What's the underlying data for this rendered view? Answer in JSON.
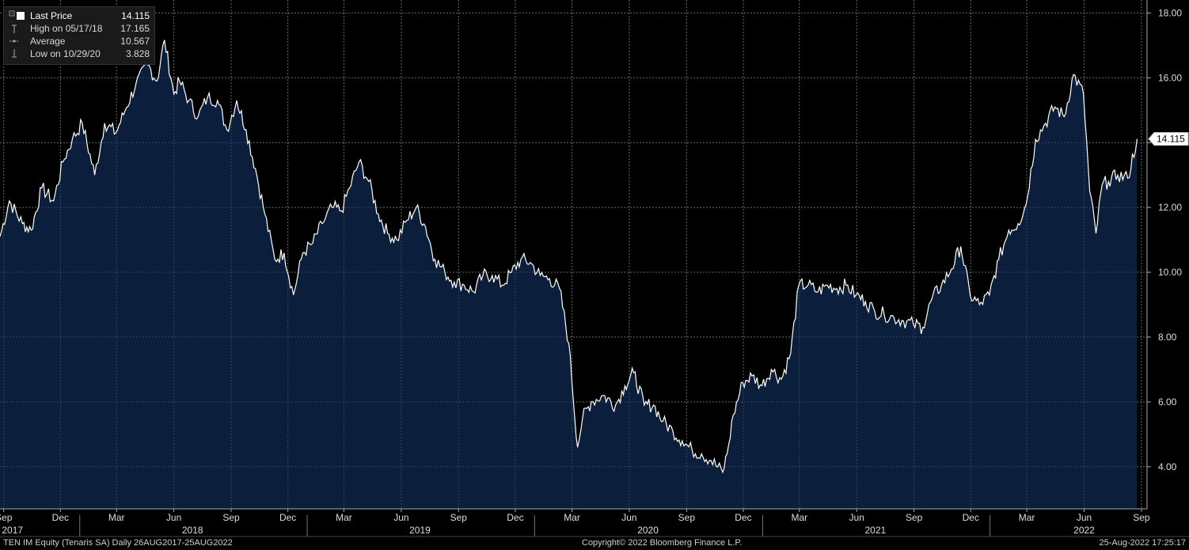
{
  "legend": {
    "last_label": "Last Price",
    "last_value": "14.115",
    "high_label": "High on 05/17/18",
    "high_value": "17.165",
    "avg_label": "Average",
    "avg_value": "10.567",
    "low_label": "Low on 10/29/20",
    "low_value": "3.828"
  },
  "footer": {
    "left": "TEN IM Equity (Tenaris SA)  Daily 26AUG2017-25AUG2022",
    "center": "Copyright© 2022 Bloomberg Finance L.P.",
    "right": "25-Aug-2022 17:25:17"
  },
  "colors": {
    "background": "#000000",
    "area_fill": "#0b1f3d",
    "line": "#ffffff",
    "grid": "#8a8a8a"
  },
  "chart_data": {
    "type": "area",
    "series": [
      {
        "name": "Last Price",
        "x": [
          "2017-08-26",
          "2017-09-10",
          "2017-10-01",
          "2017-10-15",
          "2017-11-01",
          "2017-11-20",
          "2017-12-05",
          "2017-12-20",
          "2018-01-05",
          "2018-01-25",
          "2018-02-10",
          "2018-02-28",
          "2018-03-15",
          "2018-04-01",
          "2018-04-20",
          "2018-05-05",
          "2018-05-17",
          "2018-06-01",
          "2018-06-10",
          "2018-06-25",
          "2018-07-10",
          "2018-07-25",
          "2018-08-10",
          "2018-08-25",
          "2018-09-10",
          "2018-09-25",
          "2018-10-10",
          "2018-10-25",
          "2018-11-10",
          "2018-11-25",
          "2018-12-10",
          "2018-12-25",
          "2019-01-10",
          "2019-01-25",
          "2019-02-10",
          "2019-02-25",
          "2019-03-10",
          "2019-03-25",
          "2019-04-10",
          "2019-04-25",
          "2019-05-10",
          "2019-05-25",
          "2019-06-10",
          "2019-06-25",
          "2019-07-10",
          "2019-07-25",
          "2019-08-10",
          "2019-08-25",
          "2019-09-10",
          "2019-09-25",
          "2019-10-10",
          "2019-10-25",
          "2019-11-10",
          "2019-11-25",
          "2019-12-10",
          "2019-12-25",
          "2020-01-10",
          "2020-01-25",
          "2020-02-10",
          "2020-02-25",
          "2020-03-10",
          "2020-03-18",
          "2020-04-01",
          "2020-04-20",
          "2020-05-10",
          "2020-05-25",
          "2020-06-08",
          "2020-06-25",
          "2020-07-10",
          "2020-07-25",
          "2020-08-10",
          "2020-08-25",
          "2020-09-10",
          "2020-09-25",
          "2020-10-10",
          "2020-10-29",
          "2020-11-05",
          "2020-11-15",
          "2020-11-30",
          "2020-12-15",
          "2020-12-31",
          "2021-01-15",
          "2021-01-31",
          "2021-02-15",
          "2021-02-28",
          "2021-03-15",
          "2021-03-31",
          "2021-04-15",
          "2021-04-30",
          "2021-05-15",
          "2021-05-31",
          "2021-06-15",
          "2021-06-30",
          "2021-07-15",
          "2021-07-31",
          "2021-08-15",
          "2021-08-31",
          "2021-09-15",
          "2021-09-30",
          "2021-10-15",
          "2021-10-31",
          "2021-11-15",
          "2021-11-30",
          "2021-12-15",
          "2021-12-31",
          "2022-01-15",
          "2022-01-31",
          "2022-02-15",
          "2022-02-28",
          "2022-03-15",
          "2022-03-31",
          "2022-04-15",
          "2022-04-30",
          "2022-05-15",
          "2022-05-31",
          "2022-06-10",
          "2022-06-20",
          "2022-06-30",
          "2022-07-10",
          "2022-07-25",
          "2022-08-10",
          "2022-08-25"
        ],
        "values": [
          11.1,
          12.2,
          11.5,
          11.3,
          12.6,
          12.2,
          13.4,
          14.1,
          14.6,
          13.0,
          14.6,
          14.3,
          15.0,
          15.8,
          16.4,
          15.9,
          17.165,
          15.5,
          15.9,
          15.3,
          14.8,
          15.4,
          15.3,
          14.4,
          15.3,
          14.4,
          13.2,
          11.8,
          10.4,
          10.6,
          9.3,
          10.6,
          10.9,
          11.5,
          12.0,
          11.9,
          12.6,
          13.4,
          12.8,
          11.8,
          11.2,
          11.0,
          11.6,
          12.0,
          11.4,
          10.4,
          10.0,
          9.7,
          9.6,
          9.4,
          9.9,
          9.9,
          9.6,
          10.0,
          10.4,
          10.3,
          9.9,
          9.8,
          9.5,
          7.8,
          4.6,
          5.5,
          6.0,
          6.2,
          5.9,
          6.5,
          6.9,
          5.9,
          5.9,
          5.4,
          5.1,
          4.8,
          4.5,
          4.4,
          4.2,
          3.828,
          4.4,
          5.6,
          6.6,
          6.8,
          6.5,
          7.0,
          6.7,
          7.5,
          9.6,
          9.6,
          9.4,
          9.6,
          9.5,
          9.6,
          9.3,
          9.1,
          8.8,
          8.7,
          8.6,
          8.5,
          8.4,
          8.3,
          9.2,
          9.6,
          10.1,
          10.8,
          9.3,
          9.0,
          9.3,
          10.4,
          11.3,
          11.5,
          12.1,
          14.1,
          14.6,
          15.1,
          14.8,
          16.1,
          15.5,
          12.5,
          11.2,
          12.7,
          12.8,
          13.0,
          12.9,
          14.115
        ]
      }
    ],
    "x_ticks_month": [
      {
        "date": "2017-09-01",
        "label": "Sep"
      },
      {
        "date": "2017-12-01",
        "label": "Dec"
      },
      {
        "date": "2018-03-01",
        "label": "Mar"
      },
      {
        "date": "2018-06-01",
        "label": "Jun"
      },
      {
        "date": "2018-09-01",
        "label": "Sep"
      },
      {
        "date": "2018-12-01",
        "label": "Dec"
      },
      {
        "date": "2019-03-01",
        "label": "Mar"
      },
      {
        "date": "2019-06-01",
        "label": "Jun"
      },
      {
        "date": "2019-09-01",
        "label": "Sep"
      },
      {
        "date": "2019-12-01",
        "label": "Dec"
      },
      {
        "date": "2020-03-01",
        "label": "Mar"
      },
      {
        "date": "2020-06-01",
        "label": "Jun"
      },
      {
        "date": "2020-09-01",
        "label": "Sep"
      },
      {
        "date": "2020-12-01",
        "label": "Dec"
      },
      {
        "date": "2021-03-01",
        "label": "Mar"
      },
      {
        "date": "2021-06-01",
        "label": "Jun"
      },
      {
        "date": "2021-09-01",
        "label": "Sep"
      },
      {
        "date": "2021-12-01",
        "label": "Dec"
      },
      {
        "date": "2022-03-01",
        "label": "Mar"
      },
      {
        "date": "2022-06-01",
        "label": "Jun"
      },
      {
        "date": "2022-09-01",
        "label": "Sep"
      }
    ],
    "x_ticks_year": [
      {
        "date": "2017-09-15",
        "label": "2017"
      },
      {
        "date": "2018-07-01",
        "label": "2018"
      },
      {
        "date": "2019-07-01",
        "label": "2019"
      },
      {
        "date": "2020-07-01",
        "label": "2020"
      },
      {
        "date": "2021-07-01",
        "label": "2021"
      },
      {
        "date": "2022-06-01",
        "label": "2022"
      }
    ],
    "year_boundaries": [
      "2018-01-01",
      "2019-01-01",
      "2020-01-01",
      "2021-01-01",
      "2022-01-01"
    ],
    "y_ticks": [
      4,
      6,
      8,
      10,
      12,
      14,
      16,
      18
    ],
    "y_tick_labels": [
      "4.00",
      "6.00",
      "8.00",
      "10.00",
      "12.00",
      "14.00",
      "16.00",
      "18.00"
    ],
    "xlim": [
      "2017-08-26",
      "2022-09-10"
    ],
    "ylim": [
      2.7,
      18.4
    ],
    "last_price_tag": "14.115",
    "grid": true,
    "legend_position": "top-left"
  }
}
